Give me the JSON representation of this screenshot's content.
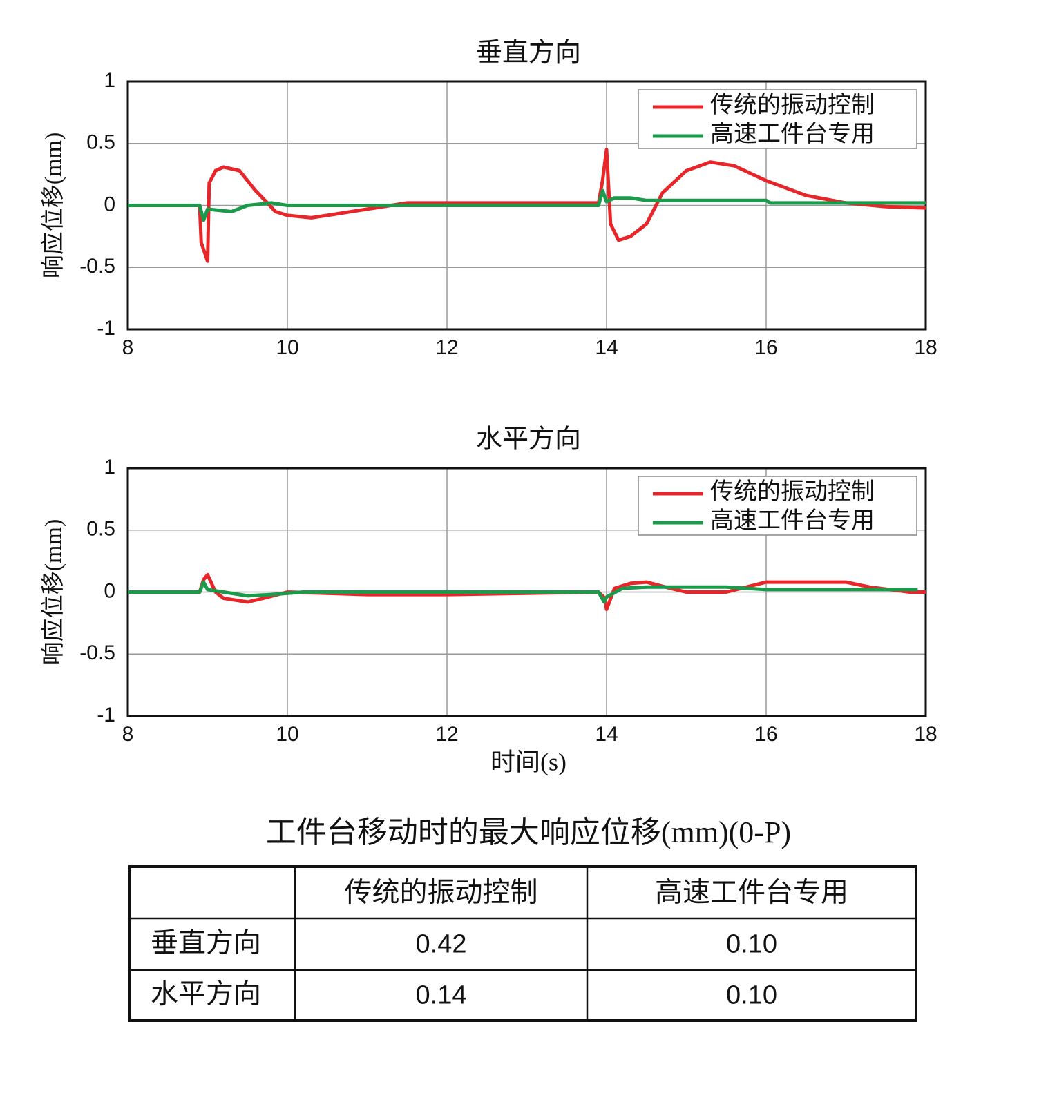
{
  "chart_data": [
    {
      "type": "line",
      "title": "垂直方向",
      "ylabel": "响应位移(mm)",
      "xlim": [
        8,
        18
      ],
      "xticks": [
        8,
        10,
        12,
        14,
        16,
        18
      ],
      "ylim": [
        -1,
        1
      ],
      "yticks": [
        -1,
        -0.5,
        0,
        0.5,
        1
      ],
      "grid": true,
      "legend": "upper right",
      "series": [
        {
          "name": "传统的振动控制",
          "color": "#e8262a",
          "x": [
            8,
            8.9,
            8.92,
            9.0,
            9.02,
            9.1,
            9.2,
            9.4,
            9.6,
            9.75,
            9.85,
            10.0,
            10.3,
            10.6,
            11.0,
            11.5,
            12,
            13.9,
            13.95,
            14.0,
            14.05,
            14.15,
            14.3,
            14.5,
            14.7,
            15.0,
            15.3,
            15.6,
            16.0,
            16.5,
            17.0,
            17.5,
            18
          ],
          "values": [
            0,
            0,
            -0.3,
            -0.45,
            0.18,
            0.28,
            0.31,
            0.28,
            0.12,
            0.02,
            -0.05,
            -0.08,
            -0.1,
            -0.07,
            -0.03,
            0.02,
            0.02,
            0.02,
            0.2,
            0.45,
            -0.15,
            -0.28,
            -0.25,
            -0.15,
            0.1,
            0.28,
            0.35,
            0.32,
            0.2,
            0.08,
            0.02,
            -0.01,
            -0.02
          ]
        },
        {
          "name": "高速工件台专用",
          "color": "#1a9a4a",
          "x": [
            8,
            8.9,
            8.95,
            9.0,
            9.3,
            9.5,
            9.8,
            10.0,
            11,
            13.9,
            13.95,
            14.0,
            14.1,
            14.3,
            14.5,
            16,
            16.05,
            17,
            18
          ],
          "values": [
            0,
            0,
            -0.12,
            -0.03,
            -0.05,
            0.0,
            0.02,
            0.0,
            0.0,
            0.0,
            0.12,
            0.03,
            0.06,
            0.06,
            0.04,
            0.04,
            0.02,
            0.02,
            0.02
          ]
        }
      ]
    },
    {
      "type": "line",
      "title": "水平方向",
      "ylabel": "响应位移(mm)",
      "xlabel": "时间(s)",
      "xlim": [
        8,
        18
      ],
      "xticks": [
        8,
        10,
        12,
        14,
        16,
        18
      ],
      "ylim": [
        -1,
        1
      ],
      "yticks": [
        -1,
        -0.5,
        0,
        0.5,
        1
      ],
      "grid": true,
      "legend": "upper right",
      "series": [
        {
          "name": "传统的振动控制",
          "color": "#e8262a",
          "x": [
            8,
            8.9,
            8.95,
            9.0,
            9.1,
            9.2,
            9.5,
            9.7,
            10,
            11,
            12,
            13.9,
            13.98,
            14.0,
            14.1,
            14.3,
            14.5,
            14.8,
            15.0,
            15.5,
            16,
            16.5,
            17,
            17.3,
            17.8,
            18
          ],
          "values": [
            0,
            0,
            0.1,
            0.14,
            0.0,
            -0.05,
            -0.08,
            -0.05,
            0.0,
            -0.02,
            -0.02,
            0.0,
            -0.05,
            -0.14,
            0.03,
            0.07,
            0.08,
            0.03,
            0.0,
            0.0,
            0.08,
            0.08,
            0.08,
            0.04,
            0.0,
            0.0
          ]
        },
        {
          "name": "高速工件台专用",
          "color": "#1a9a4a",
          "x": [
            8,
            8.9,
            8.95,
            9.0,
            9.2,
            9.5,
            9.8,
            10.2,
            13.9,
            13.97,
            14.0,
            14.2,
            14.5,
            15.5,
            16,
            17.5,
            17.9
          ],
          "values": [
            0,
            0,
            0.08,
            0.02,
            0.0,
            -0.03,
            -0.02,
            0.0,
            0.0,
            -0.08,
            -0.04,
            0.03,
            0.04,
            0.04,
            0.02,
            0.02,
            0.02
          ]
        }
      ]
    }
  ],
  "table": {
    "title": "工件台移动时的最大响应位移(mm)(0-P)",
    "header": [
      "传统的振动控制",
      "高速工件台专用"
    ],
    "rows": [
      {
        "label": "垂直方向",
        "cells": [
          "0.42",
          "0.10"
        ]
      },
      {
        "label": "水平方向",
        "cells": [
          "0.14",
          "0.10"
        ]
      }
    ]
  }
}
